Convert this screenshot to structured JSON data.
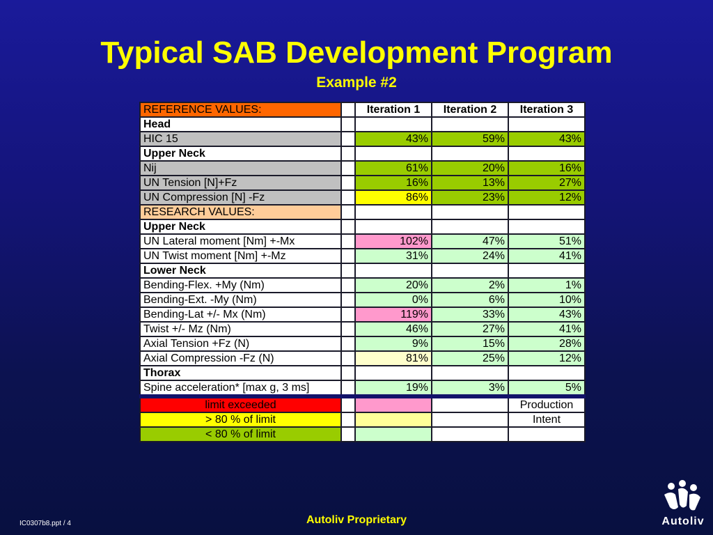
{
  "slide": {
    "title": "Typical SAB Development Program",
    "subtitle": "Example #2",
    "footer_center": "Autoliv Proprietary",
    "footer_left": "IC0307b8.ppt / 4",
    "logo_text": "Autoliv"
  },
  "colors": {
    "background": "#14147a",
    "title": "#ffff00",
    "reference_header": "#ff6600",
    "research_header": "#ffcc99",
    "grey_label": "#c0c0c0",
    "green": "#99cc00",
    "yellow": "#ffff00",
    "pink": "#ff99cc",
    "light_green": "#ccffcc",
    "red": "#ff0000"
  },
  "table": {
    "header": {
      "label": "REFERENCE VALUES:",
      "iterations": [
        "Iteration 1",
        "Iteration 2",
        "Iteration 3"
      ]
    },
    "rows": [
      {
        "label": "Head",
        "values": [
          "",
          "",
          ""
        ]
      },
      {
        "label": "HIC 15",
        "values": [
          "43%",
          "59%",
          "43%"
        ]
      },
      {
        "label": "Upper Neck",
        "values": [
          "",
          "",
          ""
        ]
      },
      {
        "label": "Nij",
        "values": [
          "61%",
          "20%",
          "16%"
        ]
      },
      {
        "label": "UN Tension [N]+Fz",
        "values": [
          "16%",
          "13%",
          "27%"
        ]
      },
      {
        "label": "UN Compression [N] -Fz",
        "values": [
          "86%",
          "23%",
          "12%"
        ]
      },
      {
        "label": "RESEARCH VALUES:",
        "values": [
          "",
          "",
          ""
        ]
      },
      {
        "label": "Upper Neck",
        "values": [
          "",
          "",
          ""
        ]
      },
      {
        "label": "UN Lateral moment [Nm] +-Mx",
        "values": [
          "102%",
          "47%",
          "51%"
        ]
      },
      {
        "label": "UN Twist moment [Nm] +-Mz",
        "values": [
          "31%",
          "24%",
          "41%"
        ]
      },
      {
        "label": "Lower Neck",
        "values": [
          "",
          "",
          ""
        ]
      },
      {
        "label": "Bending-Flex. +My (Nm)",
        "values": [
          "20%",
          "2%",
          "1%"
        ]
      },
      {
        "label": "Bending-Ext. -My (Nm)",
        "values": [
          "0%",
          "6%",
          "10%"
        ]
      },
      {
        "label": "Bending-Lat +/- Mx (Nm)",
        "values": [
          "119%",
          "33%",
          "43%"
        ]
      },
      {
        "label": "Twist +/- Mz (Nm)",
        "values": [
          "46%",
          "27%",
          "41%"
        ]
      },
      {
        "label": "Axial Tension +Fz (N)",
        "values": [
          "9%",
          "15%",
          "28%"
        ]
      },
      {
        "label": "Axial Compression -Fz (N)",
        "values": [
          "81%",
          "25%",
          "12%"
        ]
      },
      {
        "label": "Thorax",
        "values": [
          "",
          "",
          ""
        ]
      },
      {
        "label": "Spine acceleration* [max g, 3 ms]",
        "values": [
          "19%",
          "3%",
          "5%"
        ]
      }
    ]
  },
  "legend": [
    {
      "label": "limit exceeded",
      "note": ""
    },
    {
      "label": "> 80 % of limit",
      "note": ""
    },
    {
      "label": "< 80 % of limit",
      "note": ""
    }
  ],
  "legend_notes": [
    "Production",
    "Intent"
  ]
}
